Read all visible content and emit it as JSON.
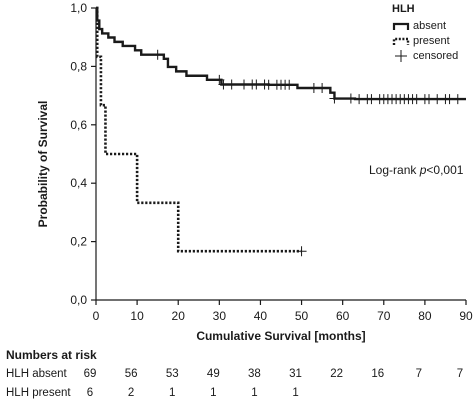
{
  "chart_data": {
    "type": "line",
    "subtype": "kaplan-meier",
    "xlabel": "Cumulative Survival [months]",
    "ylabel": "Probability of Survival",
    "xlim": [
      0,
      90
    ],
    "ylim": [
      0,
      1
    ],
    "x_ticks": [
      "0",
      "10",
      "20",
      "30",
      "40",
      "50",
      "60",
      "70",
      "80",
      "90"
    ],
    "y_ticks": [
      "0,0",
      "0,2",
      "0,4",
      "0,6",
      "0,8",
      "1,0"
    ],
    "grid": false,
    "legend": {
      "title": "HLH",
      "position": "top-right",
      "entries": [
        {
          "label": "absent",
          "style": "solid"
        },
        {
          "label": "present",
          "style": "dotted"
        },
        {
          "label": "censored",
          "style": "plus"
        }
      ]
    },
    "annotation": {
      "prefix": "Log-rank ",
      "italic": "p",
      "suffix": "<0,001"
    },
    "series": [
      {
        "name": "absent",
        "style": "solid",
        "steps": [
          [
            0,
            1.0
          ],
          [
            0.3,
            0.957
          ],
          [
            0.8,
            0.928
          ],
          [
            1.5,
            0.913
          ],
          [
            3,
            0.899
          ],
          [
            4.5,
            0.884
          ],
          [
            6.5,
            0.87
          ],
          [
            9.5,
            0.855
          ],
          [
            11,
            0.84
          ],
          [
            16.5,
            0.826
          ],
          [
            17.5,
            0.798
          ],
          [
            19.5,
            0.783
          ],
          [
            22,
            0.768
          ],
          [
            27,
            0.754
          ],
          [
            30.5,
            0.738
          ],
          [
            42,
            0.737
          ],
          [
            49,
            0.726
          ],
          [
            57,
            0.71
          ],
          [
            58,
            0.69
          ],
          [
            63,
            0.688
          ],
          [
            90,
            0.688
          ]
        ],
        "censored_x": [
          15,
          30,
          31,
          33,
          36,
          38,
          39,
          41,
          42,
          44,
          45,
          46,
          47,
          53,
          55,
          58,
          62,
          64,
          66,
          67,
          69,
          70,
          71,
          72,
          73,
          74,
          75,
          76,
          77,
          78,
          80,
          81,
          83,
          85,
          86,
          88
        ]
      },
      {
        "name": "present",
        "style": "dotted",
        "steps": [
          [
            0,
            1.0
          ],
          [
            0.3,
            0.833
          ],
          [
            1.2,
            0.667
          ],
          [
            2.3,
            0.5
          ],
          [
            10,
            0.333
          ],
          [
            20,
            0.167
          ],
          [
            50,
            0.167
          ]
        ],
        "censored_x": [
          50
        ]
      }
    ]
  },
  "risk_table": {
    "title": "Numbers at risk",
    "rows": [
      {
        "label": "HLH absent",
        "values": [
          "69",
          "56",
          "53",
          "49",
          "38",
          "31",
          "22",
          "16",
          "7",
          "7"
        ]
      },
      {
        "label": "HLH present",
        "values": [
          "6",
          "2",
          "1",
          "1",
          "1",
          "1",
          "",
          "",
          "",
          ""
        ]
      }
    ]
  }
}
